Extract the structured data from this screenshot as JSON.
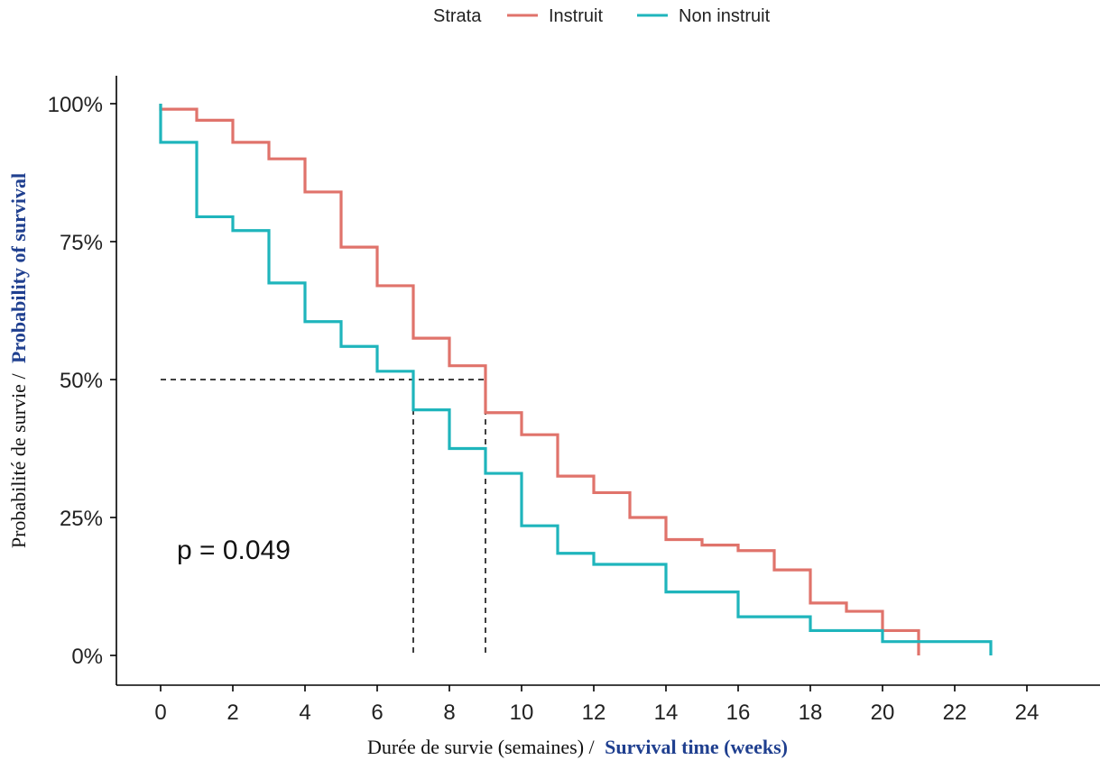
{
  "chart_data": {
    "type": "line",
    "subtype": "kaplan-meier step curve",
    "legend": {
      "title": "Strata",
      "position": "top",
      "entries": [
        "Instruit",
        "Non instruit"
      ]
    },
    "xlabel": {
      "part1": "Durée de survie (semaines) /",
      "part2": "Survival time (weeks)"
    },
    "ylabel": {
      "part1": "Probabilité de survie /",
      "part2": "Probability of survival"
    },
    "xlim": [
      0,
      24
    ],
    "ylim": [
      0,
      1
    ],
    "x_ticks": [
      0,
      2,
      4,
      6,
      8,
      10,
      12,
      14,
      16,
      18,
      20,
      22,
      24
    ],
    "y_ticks": [
      {
        "value": 0,
        "label": "0%"
      },
      {
        "value": 0.25,
        "label": "25%"
      },
      {
        "value": 0.5,
        "label": "50%"
      },
      {
        "value": 0.75,
        "label": "75%"
      },
      {
        "value": 1,
        "label": "100%"
      }
    ],
    "grid": false,
    "annotation": "p = 0.049",
    "median_lines": [
      {
        "x": 7,
        "y": 0.5
      },
      {
        "x": 9,
        "y": 0.5
      }
    ],
    "series": [
      {
        "name": "Instruit",
        "color": "#E0736B",
        "steps": [
          [
            0,
            1.0
          ],
          [
            0,
            0.99
          ],
          [
            1,
            0.97
          ],
          [
            2,
            0.93
          ],
          [
            3,
            0.9
          ],
          [
            4,
            0.84
          ],
          [
            5,
            0.74
          ],
          [
            6,
            0.67
          ],
          [
            7,
            0.575
          ],
          [
            8,
            0.525
          ],
          [
            9,
            0.44
          ],
          [
            10,
            0.4
          ],
          [
            11,
            0.325
          ],
          [
            12,
            0.295
          ],
          [
            13,
            0.25
          ],
          [
            14,
            0.21
          ],
          [
            15,
            0.2
          ],
          [
            16,
            0.19
          ],
          [
            17,
            0.155
          ],
          [
            18,
            0.095
          ],
          [
            19,
            0.08
          ],
          [
            20,
            0.045
          ],
          [
            21,
            0.0
          ]
        ]
      },
      {
        "name": "Non instruit",
        "color": "#1FB5BC",
        "steps": [
          [
            0,
            1.0
          ],
          [
            0,
            0.93
          ],
          [
            1,
            0.795
          ],
          [
            2,
            0.77
          ],
          [
            3,
            0.675
          ],
          [
            4,
            0.605
          ],
          [
            5,
            0.56
          ],
          [
            6,
            0.515
          ],
          [
            7,
            0.445
          ],
          [
            8,
            0.375
          ],
          [
            9,
            0.33
          ],
          [
            10,
            0.235
          ],
          [
            11,
            0.185
          ],
          [
            12,
            0.165
          ],
          [
            14,
            0.115
          ],
          [
            16,
            0.07
          ],
          [
            18,
            0.045
          ],
          [
            20,
            0.025
          ],
          [
            23,
            0.0
          ]
        ]
      }
    ]
  }
}
